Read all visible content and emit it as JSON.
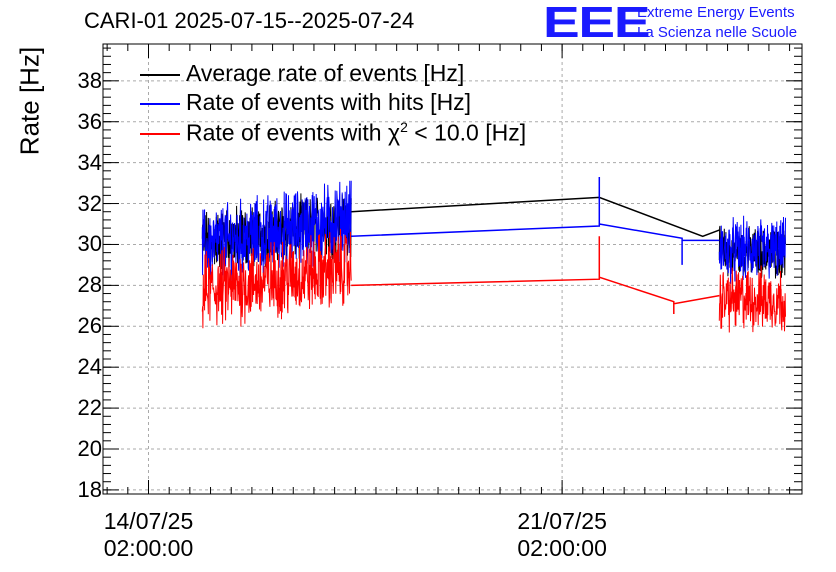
{
  "chart_data": {
    "type": "line",
    "title": "CARI-01 2025-07-15--2025-07-24",
    "xlabel": "",
    "ylabel": "Rate [Hz]",
    "ylim": [
      17.8,
      39.8
    ],
    "yticks": [
      "18",
      "20",
      "22",
      "24",
      "26",
      "28",
      "30",
      "32",
      "34",
      "36",
      "38"
    ],
    "xlim_days": [
      -1.1,
      15.8
    ],
    "xticks": [
      {
        "day": 0,
        "date": "14/07/25",
        "time": "02:00:00"
      },
      {
        "day": 10,
        "date": "21/07/25",
        "time": "02:00:00"
      }
    ],
    "grid": true,
    "legend_position": "top-left",
    "series": [
      {
        "name": "Average rate of events [Hz]",
        "color": "#000000",
        "segments": [
          {
            "x_start": 1.3,
            "x_end": 4.9,
            "mean": 30.6,
            "noise": 0.9,
            "drift": 0.5
          },
          {
            "x_start": 13.8,
            "x_end": 15.4,
            "mean": 29.6,
            "noise": 0.7,
            "drift": 0.0
          }
        ],
        "points": [
          [
            4.9,
            31.6
          ],
          [
            10.9,
            32.3
          ],
          [
            13.4,
            30.4
          ],
          [
            13.8,
            30.7
          ]
        ]
      },
      {
        "name": "Rate of events with hits [Hz]",
        "color": "#0000ff",
        "segments": [
          {
            "x_start": 1.3,
            "x_end": 4.9,
            "mean": 30.6,
            "noise": 1.1,
            "drift": 0.7
          },
          {
            "x_start": 13.8,
            "x_end": 15.4,
            "mean": 29.7,
            "noise": 0.9,
            "drift": 0.0
          }
        ],
        "points": [
          [
            4.9,
            30.4
          ],
          [
            10.9,
            30.9
          ],
          [
            10.9,
            33.3
          ],
          [
            10.9,
            31.0
          ],
          [
            12.9,
            30.3
          ],
          [
            12.9,
            29.0
          ],
          [
            12.9,
            30.2
          ],
          [
            13.8,
            30.2
          ]
        ]
      },
      {
        "name": "Rate of events with χ² < 10.0 [Hz]",
        "color": "#ff0000",
        "segments": [
          {
            "x_start": 1.3,
            "x_end": 4.9,
            "mean": 28.3,
            "noise": 1.1,
            "drift": 0.6
          },
          {
            "x_start": 13.8,
            "x_end": 15.4,
            "mean": 27.3,
            "noise": 0.9,
            "drift": 0.0
          }
        ],
        "points": [
          [
            4.9,
            28.0
          ],
          [
            10.9,
            28.3
          ],
          [
            10.9,
            30.4
          ],
          [
            10.9,
            28.4
          ],
          [
            12.7,
            27.2
          ],
          [
            12.7,
            26.6
          ],
          [
            12.7,
            27.1
          ],
          [
            13.8,
            27.5
          ]
        ]
      }
    ]
  },
  "header": {
    "logo_text": "EEE",
    "logo_line1": "Extreme Energy Events",
    "logo_line2": "La Scienza nelle Scuole"
  },
  "legend": {
    "item1": "Average rate of events [Hz]",
    "item2": "Rate of events with hits [Hz]",
    "item3_prefix": "Rate of events with χ",
    "item3_sup": "2",
    "item3_suffix": " < 10.0 [Hz]"
  }
}
